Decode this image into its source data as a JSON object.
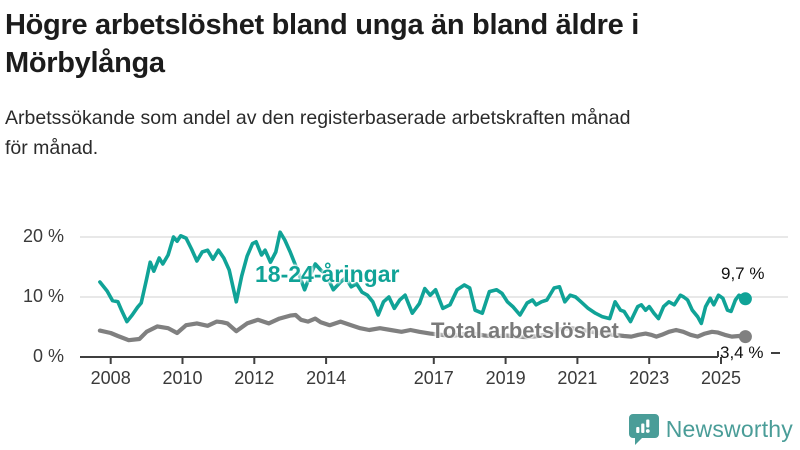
{
  "header": {
    "title": "Högre arbetslöshet bland unga än bland äldre i Mörbylånga",
    "subtitle": "Arbetssökande som andel av den registerbaserade arbetskraften månad för månad."
  },
  "footer": {
    "brand": "Newsworthy",
    "logo_icon": "bar-chart-speech-bubble-icon"
  },
  "colors": {
    "accent_teal": "#10a397",
    "series_gray": "#808080",
    "logo_teal": "#4a9d98",
    "gridline": "#d9d9d9",
    "axis": "#3f3f3f",
    "title_text": "#1c1c1c"
  },
  "chart_data": {
    "type": "line",
    "title": "Högre arbetslöshet bland unga än bland äldre i Mörbylånga",
    "subtitle": "Arbetssökande som andel av den registerbaserade arbetskraften månad för månad.",
    "unit": "%",
    "grid": true,
    "legend_position": "inline-labels",
    "x_axis": {
      "range": [
        2007.6,
        2025.85
      ],
      "ticks": [
        {
          "year": 2008,
          "label": "2008"
        },
        {
          "year": 2010,
          "label": "2010"
        },
        {
          "year": 2012,
          "label": "2012"
        },
        {
          "year": 2014,
          "label": "2014"
        },
        {
          "year": 2017,
          "label": "2017"
        },
        {
          "year": 2019,
          "label": "2019"
        },
        {
          "year": 2021,
          "label": "2021"
        },
        {
          "year": 2023,
          "label": "2023"
        },
        {
          "year": 2025,
          "label": "2025"
        }
      ]
    },
    "y_axis": {
      "range": [
        0,
        22
      ],
      "gridlines": [
        10,
        20
      ],
      "ticks": [
        {
          "value": 0,
          "label": "0 %"
        },
        {
          "value": 10,
          "label": "10 %"
        },
        {
          "value": 20,
          "label": "20 %"
        }
      ]
    },
    "series": [
      {
        "id": "18-24",
        "name": "18-24-åringar",
        "color": "#10a397",
        "end_label": "9,7 %",
        "end_value": 9.7,
        "points": [
          [
            2007.7,
            12.5
          ],
          [
            2007.9,
            11.0
          ],
          [
            2008.05,
            9.4
          ],
          [
            2008.2,
            9.2
          ],
          [
            2008.3,
            7.8
          ],
          [
            2008.45,
            5.9
          ],
          [
            2008.6,
            7.0
          ],
          [
            2008.75,
            8.3
          ],
          [
            2008.85,
            9.0
          ],
          [
            2009.0,
            13.0
          ],
          [
            2009.1,
            15.8
          ],
          [
            2009.2,
            14.3
          ],
          [
            2009.35,
            16.5
          ],
          [
            2009.45,
            15.5
          ],
          [
            2009.6,
            17.0
          ],
          [
            2009.75,
            20.0
          ],
          [
            2009.85,
            19.3
          ],
          [
            2009.95,
            20.2
          ],
          [
            2010.1,
            19.8
          ],
          [
            2010.25,
            18.0
          ],
          [
            2010.4,
            16.0
          ],
          [
            2010.55,
            17.5
          ],
          [
            2010.7,
            17.8
          ],
          [
            2010.85,
            16.3
          ],
          [
            2011.0,
            17.8
          ],
          [
            2011.15,
            16.5
          ],
          [
            2011.3,
            14.5
          ],
          [
            2011.5,
            9.2
          ],
          [
            2011.65,
            13.5
          ],
          [
            2011.8,
            16.8
          ],
          [
            2011.95,
            18.9
          ],
          [
            2012.05,
            19.2
          ],
          [
            2012.2,
            17.0
          ],
          [
            2012.3,
            17.8
          ],
          [
            2012.45,
            15.8
          ],
          [
            2012.6,
            17.5
          ],
          [
            2012.72,
            20.8
          ],
          [
            2012.85,
            19.5
          ],
          [
            2013.0,
            17.5
          ],
          [
            2013.2,
            14.5
          ],
          [
            2013.4,
            11.2
          ],
          [
            2013.55,
            13.5
          ],
          [
            2013.7,
            15.5
          ],
          [
            2013.85,
            14.5
          ],
          [
            2014.0,
            13.8
          ],
          [
            2014.2,
            11.2
          ],
          [
            2014.4,
            12.5
          ],
          [
            2014.55,
            13.2
          ],
          [
            2014.7,
            11.7
          ],
          [
            2014.85,
            12.2
          ],
          [
            2015.0,
            10.8
          ],
          [
            2015.15,
            10.3
          ],
          [
            2015.3,
            9.2
          ],
          [
            2015.45,
            7.0
          ],
          [
            2015.6,
            9.2
          ],
          [
            2015.75,
            10.0
          ],
          [
            2015.9,
            8.1
          ],
          [
            2016.05,
            9.5
          ],
          [
            2016.2,
            10.3
          ],
          [
            2016.4,
            7.3
          ],
          [
            2016.6,
            8.9
          ],
          [
            2016.75,
            11.4
          ],
          [
            2016.9,
            10.3
          ],
          [
            2017.05,
            11.2
          ],
          [
            2017.25,
            8.1
          ],
          [
            2017.45,
            8.7
          ],
          [
            2017.65,
            11.2
          ],
          [
            2017.85,
            12.0
          ],
          [
            2018.0,
            11.5
          ],
          [
            2018.15,
            7.8
          ],
          [
            2018.35,
            7.3
          ],
          [
            2018.55,
            10.9
          ],
          [
            2018.75,
            11.2
          ],
          [
            2018.9,
            10.6
          ],
          [
            2019.05,
            9.2
          ],
          [
            2019.2,
            8.4
          ],
          [
            2019.4,
            7.0
          ],
          [
            2019.6,
            9.0
          ],
          [
            2019.75,
            9.5
          ],
          [
            2019.85,
            8.7
          ],
          [
            2020.0,
            9.2
          ],
          [
            2020.15,
            9.5
          ],
          [
            2020.35,
            11.5
          ],
          [
            2020.5,
            11.7
          ],
          [
            2020.65,
            9.2
          ],
          [
            2020.8,
            10.3
          ],
          [
            2020.95,
            10.0
          ],
          [
            2021.1,
            9.2
          ],
          [
            2021.3,
            8.1
          ],
          [
            2021.5,
            7.3
          ],
          [
            2021.7,
            6.7
          ],
          [
            2021.9,
            6.4
          ],
          [
            2022.05,
            9.2
          ],
          [
            2022.2,
            7.8
          ],
          [
            2022.3,
            7.6
          ],
          [
            2022.48,
            5.9
          ],
          [
            2022.68,
            8.4
          ],
          [
            2022.78,
            8.7
          ],
          [
            2022.9,
            7.8
          ],
          [
            2023.0,
            8.4
          ],
          [
            2023.13,
            7.3
          ],
          [
            2023.26,
            6.4
          ],
          [
            2023.4,
            8.4
          ],
          [
            2023.55,
            9.2
          ],
          [
            2023.7,
            8.7
          ],
          [
            2023.87,
            10.3
          ],
          [
            2023.96,
            10.0
          ],
          [
            2024.07,
            9.5
          ],
          [
            2024.2,
            7.8
          ],
          [
            2024.35,
            6.7
          ],
          [
            2024.45,
            5.6
          ],
          [
            2024.57,
            8.4
          ],
          [
            2024.7,
            9.8
          ],
          [
            2024.8,
            8.7
          ],
          [
            2024.93,
            10.3
          ],
          [
            2025.05,
            9.8
          ],
          [
            2025.18,
            7.8
          ],
          [
            2025.28,
            7.6
          ],
          [
            2025.4,
            9.5
          ],
          [
            2025.5,
            10.3
          ],
          [
            2025.6,
            10.0
          ],
          [
            2025.68,
            9.7
          ]
        ]
      },
      {
        "id": "total",
        "name": "Total arbetslöshet",
        "color": "#808080",
        "end_label": "3,4 %",
        "end_value": 3.4,
        "points": [
          [
            2007.7,
            4.4
          ],
          [
            2008.0,
            4.0
          ],
          [
            2008.2,
            3.5
          ],
          [
            2008.5,
            2.8
          ],
          [
            2008.8,
            3.0
          ],
          [
            2009.0,
            4.2
          ],
          [
            2009.3,
            5.1
          ],
          [
            2009.6,
            4.8
          ],
          [
            2009.85,
            4.0
          ],
          [
            2010.1,
            5.3
          ],
          [
            2010.4,
            5.6
          ],
          [
            2010.7,
            5.2
          ],
          [
            2010.95,
            5.9
          ],
          [
            2011.1,
            5.8
          ],
          [
            2011.25,
            5.6
          ],
          [
            2011.5,
            4.3
          ],
          [
            2011.8,
            5.6
          ],
          [
            2012.1,
            6.2
          ],
          [
            2012.4,
            5.6
          ],
          [
            2012.7,
            6.4
          ],
          [
            2013.0,
            6.9
          ],
          [
            2013.15,
            7.0
          ],
          [
            2013.3,
            6.2
          ],
          [
            2013.5,
            5.9
          ],
          [
            2013.7,
            6.4
          ],
          [
            2013.85,
            5.8
          ],
          [
            2014.1,
            5.3
          ],
          [
            2014.4,
            5.9
          ],
          [
            2014.7,
            5.3
          ],
          [
            2014.95,
            4.8
          ],
          [
            2015.2,
            4.5
          ],
          [
            2015.5,
            4.8
          ],
          [
            2015.8,
            4.5
          ],
          [
            2016.1,
            4.2
          ],
          [
            2016.35,
            4.5
          ],
          [
            2016.6,
            4.2
          ],
          [
            2016.9,
            3.9
          ],
          [
            2017.2,
            3.7
          ],
          [
            2017.5,
            3.5
          ],
          [
            2017.8,
            3.8
          ],
          [
            2018.1,
            3.9
          ],
          [
            2018.4,
            3.6
          ],
          [
            2018.7,
            3.4
          ],
          [
            2019.0,
            3.6
          ],
          [
            2019.3,
            3.4
          ],
          [
            2019.6,
            3.3
          ],
          [
            2019.9,
            3.5
          ],
          [
            2020.2,
            3.8
          ],
          [
            2020.5,
            4.6
          ],
          [
            2020.8,
            4.8
          ],
          [
            2021.1,
            4.6
          ],
          [
            2021.4,
            4.2
          ],
          [
            2021.7,
            3.9
          ],
          [
            2022.0,
            3.7
          ],
          [
            2022.3,
            3.5
          ],
          [
            2022.5,
            3.4
          ],
          [
            2022.7,
            3.7
          ],
          [
            2022.9,
            3.9
          ],
          [
            2023.05,
            3.7
          ],
          [
            2023.2,
            3.4
          ],
          [
            2023.35,
            3.7
          ],
          [
            2023.55,
            4.2
          ],
          [
            2023.75,
            4.5
          ],
          [
            2023.95,
            4.2
          ],
          [
            2024.15,
            3.7
          ],
          [
            2024.35,
            3.4
          ],
          [
            2024.55,
            3.9
          ],
          [
            2024.75,
            4.2
          ],
          [
            2024.9,
            4.1
          ],
          [
            2025.1,
            3.7
          ],
          [
            2025.3,
            3.4
          ],
          [
            2025.5,
            3.5
          ],
          [
            2025.68,
            3.4
          ]
        ]
      }
    ]
  }
}
